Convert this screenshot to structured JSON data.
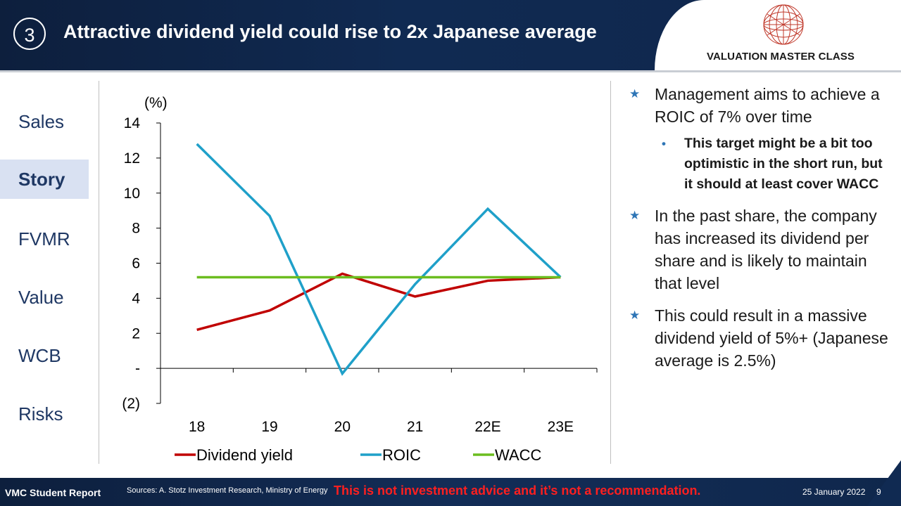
{
  "header": {
    "section_number": "3",
    "title": "Attractive dividend yield could rise to 2x Japanese average",
    "logo_text": "VALUATION MASTER CLASS"
  },
  "nav": {
    "items": [
      {
        "label": "Sales",
        "active": false
      },
      {
        "label": "Story",
        "active": true
      },
      {
        "label": "FVMR",
        "active": false
      },
      {
        "label": "Value",
        "active": false
      },
      {
        "label": "WCB",
        "active": false
      },
      {
        "label": "Risks",
        "active": false
      }
    ]
  },
  "chart_data": {
    "type": "line",
    "unit_label": "(%)",
    "categories": [
      "18",
      "19",
      "20",
      "21",
      "22E",
      "23E"
    ],
    "ylim": [
      -2,
      14
    ],
    "yticks": [
      -2,
      0,
      2,
      4,
      6,
      8,
      10,
      12,
      14
    ],
    "ytick_labels": [
      "(2)",
      "-",
      "2",
      "4",
      "6",
      "8",
      "10",
      "12",
      "14"
    ],
    "series": [
      {
        "name": "Dividend yield",
        "color": "#c00000",
        "values": [
          2.2,
          3.3,
          5.4,
          4.1,
          5.0,
          5.2
        ]
      },
      {
        "name": "ROIC",
        "color": "#1fa0c9",
        "values": [
          12.8,
          8.7,
          -0.3,
          4.8,
          9.1,
          5.2
        ]
      },
      {
        "name": "WACC",
        "color": "#6bbd1f",
        "values": [
          5.2,
          5.2,
          5.2,
          5.2,
          5.2,
          5.2
        ]
      }
    ],
    "legend_position": "bottom",
    "grid": false
  },
  "bullets": [
    {
      "text": "Management aims to achieve a ROIC of 7% over time",
      "sub": [
        "This target might be a bit too optimistic in the short run, but it should at least cover WACC"
      ]
    },
    {
      "text": "In the past share, the company has increased its dividend per share and is likely to maintain that level",
      "sub": []
    },
    {
      "text": "This could result in a massive dividend yield of 5%+ (Japanese average is 2.5%)",
      "sub": []
    }
  ],
  "footer": {
    "report": "VMC Student Report",
    "sources": "Sources: A. Stotz Investment Research, Ministry of Energy",
    "disclaimer": "This is not investment advice and it’s not a recommendation.",
    "date": "25 January 2022",
    "page": "9"
  },
  "colors": {
    "header_bg": "#102a52",
    "nav_text": "#1f3864",
    "nav_active_bg": "#d9e1f2",
    "bullet_marker": "#2e75b6",
    "disclaimer": "#ff1f1f"
  },
  "icons": {
    "logo": "wireframe-globe-icon",
    "bullet": "star-icon",
    "sub_bullet": "dot-icon"
  }
}
